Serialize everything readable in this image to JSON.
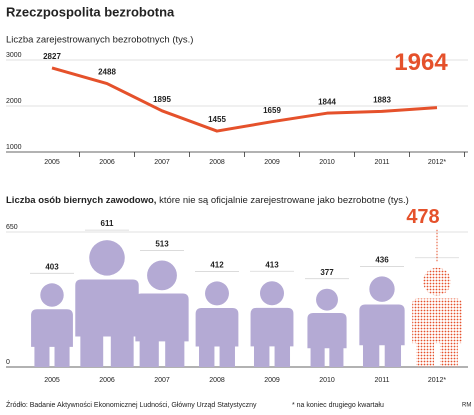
{
  "title": "Rzeczpospolita bezrobotna",
  "chart_data": [
    {
      "type": "line",
      "title": "Liczba zarejestrowanych bezrobotnych (tys.)",
      "categories": [
        "2005",
        "2006",
        "2007",
        "2008",
        "2009",
        "2010",
        "2011",
        "2012*"
      ],
      "values": [
        2827,
        2488,
        1895,
        1455,
        1659,
        1844,
        1883,
        1964
      ],
      "color": "#e5512b",
      "ylim": [
        1000,
        3000
      ],
      "yticks": [
        1000,
        2000,
        3000
      ],
      "grid": true
    },
    {
      "type": "figure",
      "title": "Liczba osób biernych zawodowo,",
      "subtitle": "które nie są oficjalnie zarejestrowane jako bezrobotne (tys.)",
      "categories": [
        "2005",
        "2006",
        "2007",
        "2008",
        "2009",
        "2010",
        "2011",
        "2012*"
      ],
      "values": [
        403,
        611,
        513,
        412,
        413,
        377,
        436,
        478
      ],
      "color": "#b4aad4",
      "highlight_color": "#e5512b",
      "ylim": [
        0,
        650
      ],
      "yticks": [
        0,
        650
      ],
      "grid": true
    }
  ],
  "source": "Źródło: Badanie Aktywności Ekonomicznej Ludności, Główny Urząd Statystyczny",
  "footnote": "* na koniec drugiego kwartału",
  "credit": "RM"
}
